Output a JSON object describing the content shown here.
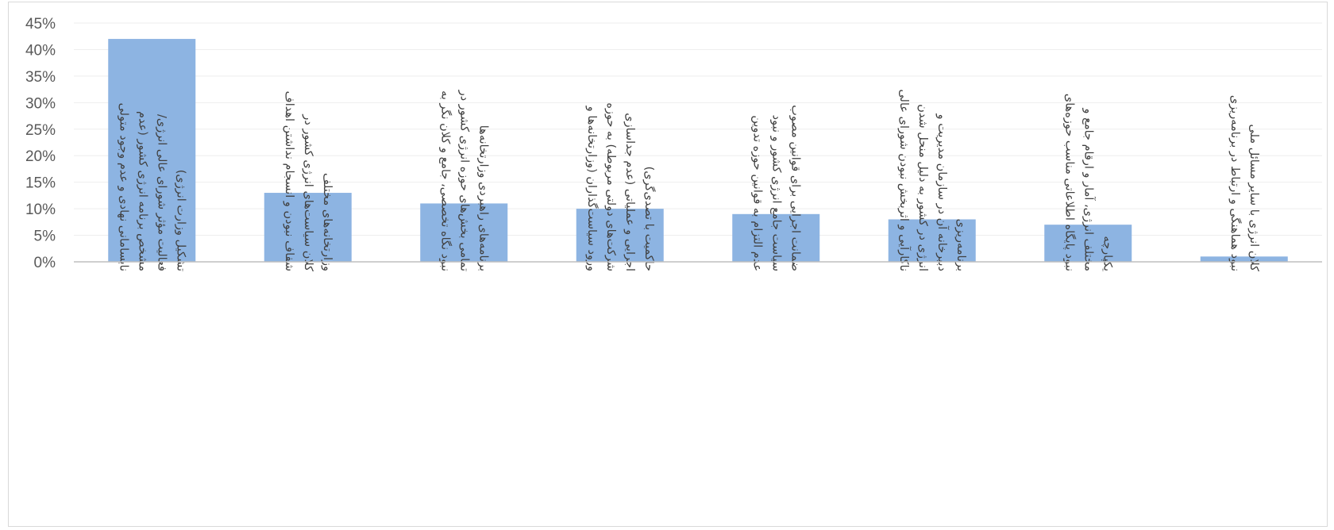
{
  "chart_data": {
    "type": "bar",
    "title": "",
    "xlabel": "",
    "ylabel": "",
    "ylim": [
      0,
      0.45
    ],
    "y_ticks": [
      "0%",
      "5%",
      "10%",
      "15%",
      "20%",
      "25%",
      "30%",
      "35%",
      "40%",
      "45%"
    ],
    "grid": true,
    "legend": "none",
    "bar_color": "#8db4e2",
    "categories": [
      "نابسامانی نهادی و عدم وجود متولی مشخص برنامه انرژی کشور (عدم فعالیت مؤثر شورای عالی انرژی/ تشکیل وزارت انرژی)",
      "شفاف نبودن و انسجام نداشتن اهداف کلان سیاست‌های انرژی کشور در وزارتخانه‌های مختلف",
      "نبود نگاه تخصصی، جامع و کلان نگر به تمامی بخش‌های حوزه انرژی کشور در برنامه‌های راهبردی وزارتخانه‌ها",
      "ورود سیاست‌گذاران (وزارتخانه‌ها و شرکت‌های دولتی مربوطه) به حوزه اجرایی و عملیاتی (عدم جداسازی حاکمیت با تصدی‌گری)",
      "عدم التزام به قوانین حوزه تدوین سیاست جامع انرژی کشور و نبود ضمانت اجرایی برای قوانین مصوب",
      "ناکارآیی و اثربخش نبودن شورای عالی انرژی در کشور به دلیل منحل شدن دبیرخانه آن در سازمان مدیریت و برنامه‌ریزی",
      "نبود پایگاه اطلاعاتی مناسب حوزه‌های مختلف انرژی، آمار و ارقام جامع و یکپارچه",
      "نبود هماهنگی و ارتباط در برنامه‌ریزی کلان انرژی با سایر مسائل ملی"
    ],
    "category_lines": [
      [
        "نابسامانی نهادی و عدم وجود متولی",
        "مشخص برنامه انرژی کشور (عدم",
        "فعالیت مؤثر شورای عالی انرژی/",
        "تشکیل وزارت انرژی)"
      ],
      [
        "شفاف نبودن و انسجام نداشتن اهداف",
        "کلان سیاست‌های انرژی کشور در",
        "وزارتخانه‌های مختلف"
      ],
      [
        "نبود نگاه تخصصی، جامع و کلان نگر به",
        "تمامی بخش‌های حوزه انرژی کشور در",
        "برنامه‌های راهبردی وزارتخانه‌ها"
      ],
      [
        "ورود سیاست‌گذاران (وزارتخانه‌ها و",
        "شرکت‌های دولتی مربوطه) به حوزه",
        "اجرایی و عملیاتی (عدم جداسازی",
        "حاکمیت با تصدی‌گری)"
      ],
      [
        "عدم التزام به قوانین حوزه تدوین",
        "سیاست جامع انرژی کشور و نبود",
        "ضمانت اجرایی برای قوانین مصوب"
      ],
      [
        "ناکارآیی و اثربخش نبودن شورای عالی",
        "انرژی در کشور به دلیل منحل شدن",
        "دبیرخانه آن در سازمان مدیریت و",
        "برنامه‌ریزی"
      ],
      [
        "نبود پایگاه اطلاعاتی مناسب حوزه‌های",
        "مختلف انرژی، آمار و ارقام جامع و",
        "یکپارچه"
      ],
      [
        "نبود هماهنگی و ارتباط در برنامه‌ریزی",
        "کلان انرژی با سایر مسائل ملی"
      ]
    ],
    "values": [
      0.42,
      0.13,
      0.11,
      0.1,
      0.09,
      0.08,
      0.07,
      0.01
    ]
  }
}
